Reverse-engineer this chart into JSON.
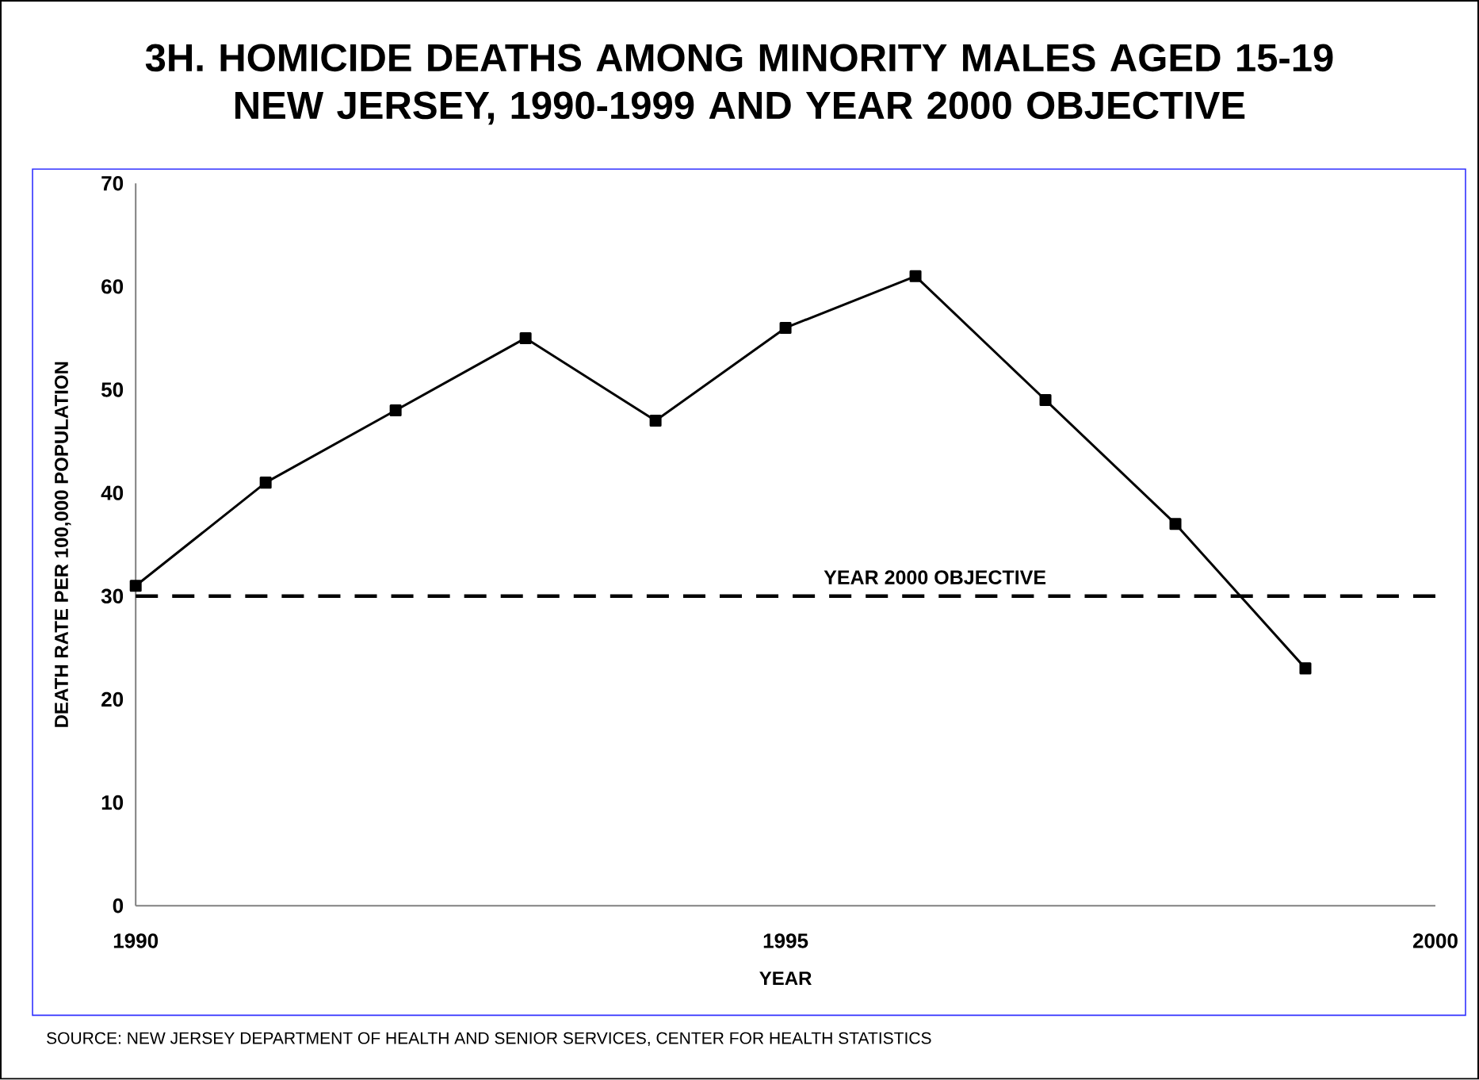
{
  "chart_data": {
    "type": "line",
    "title": "3H. HOMICIDE DEATHS AMONG MINORITY MALES AGED 15-19\nNEW JERSEY, 1990-1999 AND YEAR 2000 OBJECTIVE",
    "xlabel": "YEAR",
    "ylabel": "DEATH RATE PER 100,000 POPULATION",
    "x": [
      1990,
      1991,
      1992,
      1993,
      1994,
      1995,
      1996,
      1997,
      1998,
      1999
    ],
    "series": [
      {
        "color": "#000000",
        "values": [
          31,
          41,
          48,
          55,
          47,
          56,
          61,
          49,
          37,
          23
        ]
      }
    ],
    "xlim": [
      1990,
      2000
    ],
    "ylim": [
      0,
      70
    ],
    "xticks": [
      1990,
      1995,
      2000
    ],
    "yticks": [
      0,
      10,
      20,
      30,
      40,
      50,
      60,
      70
    ],
    "ref_lines": [
      {
        "axis": "y",
        "value": 30,
        "label": "YEAR 2000 OBJECTIVE",
        "color": "#000000",
        "line_style": "dashed"
      }
    ],
    "annotations": [
      "SOURCE: NEW JERSEY DEPARTMENT OF HEALTH AND SENIOR SERVICES, CENTER FOR HEALTH STATISTICS"
    ],
    "marker": "square",
    "line_style": "solid",
    "grid": false
  }
}
